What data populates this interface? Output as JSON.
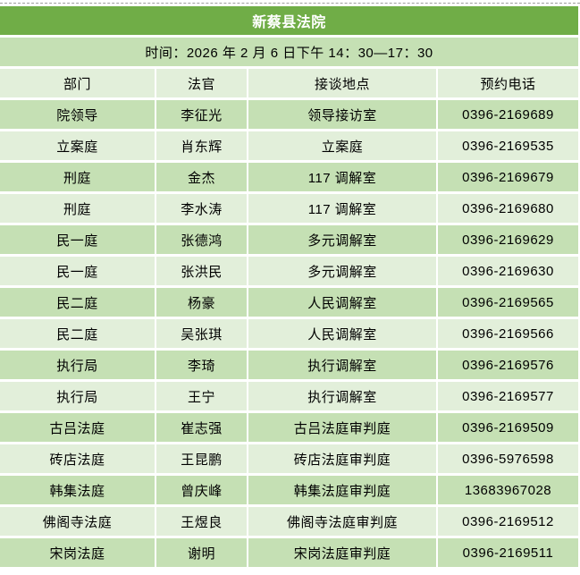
{
  "sheet": {
    "title": "新蔡县法院",
    "time_text": "时间：2026 年 2 月 6 日下午 14：30—17：30",
    "columns": [
      "部门",
      "法官",
      "接谈地点",
      "预约电话"
    ],
    "rows": [
      [
        "院领导",
        "李征光",
        "领导接访室",
        "0396-2169689"
      ],
      [
        "立案庭",
        "肖东辉",
        "立案庭",
        "0396-2169535"
      ],
      [
        "刑庭",
        "金杰",
        "117 调解室",
        "0396-2169679"
      ],
      [
        "刑庭",
        "李水涛",
        "117 调解室",
        "0396-2169680"
      ],
      [
        "民一庭",
        "张德鸿",
        "多元调解室",
        "0396-2169629"
      ],
      [
        "民一庭",
        "张洪民",
        "多元调解室",
        "0396-2169630"
      ],
      [
        "民二庭",
        "杨豪",
        "人民调解室",
        "0396-2169565"
      ],
      [
        "民二庭",
        "吴张琪",
        "人民调解室",
        "0396-2169566"
      ],
      [
        "执行局",
        "李琦",
        "执行调解室",
        "0396-2169576"
      ],
      [
        "执行局",
        "王宁",
        "执行调解室",
        "0396-2169577"
      ],
      [
        "古吕法庭",
        "崔志强",
        "古吕法庭审判庭",
        "0396-2169509"
      ],
      [
        "砖店法庭",
        "王昆鹏",
        "砖店法庭审判庭",
        "0396-5976598"
      ],
      [
        "韩集法庭",
        "曾庆峰",
        "韩集法庭审判庭",
        "13683967028"
      ],
      [
        "佛阁寺法庭",
        "王煜良",
        "佛阁寺法庭审判庭",
        "0396-2169512"
      ],
      [
        "宋岗法庭",
        "谢明",
        "宋岗法庭审判庭",
        "0396-2169511"
      ]
    ],
    "colors": {
      "title_bg": "#70AD47",
      "title_text": "#FFFFFF",
      "row_medium": "#C5E0B4",
      "row_light": "#E2EFDA",
      "gridline": "#FFFFFF",
      "cell_text": "#000000"
    }
  }
}
